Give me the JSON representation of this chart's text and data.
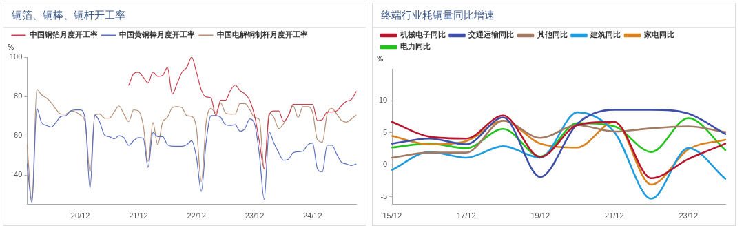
{
  "chart_data": [
    {
      "type": "line",
      "title": "铜箔、铜棒、铜杆开工率",
      "ylabel": "%",
      "legend": "top",
      "grid": false,
      "marker": "none",
      "line_style": "solid",
      "categories": [
        null,
        null,
        null,
        null,
        null,
        null,
        null,
        null,
        null,
        null,
        null,
        "20/12",
        null,
        null,
        null,
        null,
        null,
        null,
        null,
        null,
        null,
        null,
        null,
        "21/12",
        null,
        null,
        null,
        null,
        null,
        null,
        null,
        null,
        null,
        null,
        null,
        "22/12",
        null,
        null,
        null,
        null,
        null,
        null,
        null,
        null,
        null,
        null,
        null,
        "23/12",
        null,
        null,
        null,
        null,
        null,
        null,
        null,
        null,
        null,
        null,
        null,
        "24/12",
        null,
        null,
        null,
        null,
        null,
        null,
        null,
        null,
        null
      ],
      "ylim": [
        25,
        100
      ],
      "yticks": [
        40,
        60,
        80,
        100
      ],
      "series": [
        {
          "name": "中国铜箔月度开工率",
          "color": "#c8404f",
          "values": [
            null,
            null,
            null,
            null,
            null,
            null,
            null,
            null,
            null,
            null,
            null,
            null,
            null,
            null,
            null,
            null,
            null,
            null,
            null,
            null,
            null,
            85.7,
            91.5,
            92.3,
            89.8,
            86.9,
            92.3,
            90.2,
            90.7,
            94.8,
            81.3,
            86.6,
            92.3,
            94.8,
            100,
            92.3,
            83.3,
            79.7,
            79.2,
            70.2,
            78.0,
            78.0,
            83.0,
            85.7,
            83.0,
            81.3,
            78.0,
            70.2,
            57.0,
            43.1,
            70.2,
            72.6,
            72.6,
            67.2,
            70.2,
            75.9,
            75.9,
            75.9,
            75.9,
            75.9,
            67.7,
            68.2,
            72.1,
            72.1,
            72.6,
            75.4,
            77.5,
            78.4,
            82.5
          ]
        },
        {
          "name": "中国黄铜棒月度开工率",
          "color": "#5b6fc2",
          "values": [
            45.6,
            25.6,
            73.8,
            66.6,
            65.2,
            64.4,
            66.9,
            69.8,
            70.2,
            72.6,
            73.1,
            73.1,
            68.5,
            33.3,
            70.5,
            66.9,
            60.3,
            59.5,
            58.4,
            60.0,
            59.0,
            55.1,
            57.4,
            59.0,
            58.7,
            43.9,
            61.6,
            59.5,
            59.5,
            55.4,
            54.6,
            54.6,
            54.6,
            55.4,
            57.4,
            48.9,
            31.6,
            57.0,
            70.2,
            70.2,
            69.3,
            65.6,
            65.2,
            65.6,
            62.3,
            63.6,
            68.5,
            66.1,
            50.5,
            27.5,
            62.0,
            56.2,
            51.3,
            47.5,
            48.0,
            51.3,
            51.8,
            52.1,
            55.4,
            56.2,
            43.1,
            41.5,
            55.1,
            55.1,
            50.5,
            46.4,
            45.6,
            44.8,
            45.6
          ]
        },
        {
          "name": "中国电解铜制杆月度开工率",
          "color": "#b58e74",
          "values": [
            55.4,
            26.7,
            83.6,
            80.8,
            79.2,
            76.7,
            73.4,
            71.0,
            71.0,
            72.6,
            72.1,
            70.5,
            66.9,
            41.5,
            70.5,
            71.0,
            68.9,
            68.9,
            72.1,
            75.1,
            71.0,
            67.2,
            73.1,
            72.6,
            65.2,
            46.9,
            66.6,
            55.4,
            66.9,
            69.3,
            74.3,
            74.8,
            74.3,
            70.2,
            69.8,
            63.6,
            36.6,
            66.9,
            73.8,
            71.8,
            76.7,
            71.5,
            71.0,
            71.0,
            76.4,
            76.4,
            73.4,
            69.3,
            68.2,
            43.1,
            71.5,
            69.3,
            63.6,
            66.1,
            70.5,
            75.1,
            69.3,
            74.8,
            74.8,
            71.8,
            57.9,
            56.7,
            71.0,
            73.8,
            71.0,
            67.7,
            66.9,
            68.5,
            70.5
          ]
        }
      ]
    },
    {
      "type": "line",
      "title": "终端行业耗铜量同比增速",
      "ylabel": "%",
      "legend": "top",
      "grid": false,
      "marker": "none",
      "line_style": "solid",
      "categories": [
        "15/12",
        null,
        "17/12",
        null,
        "19/12",
        null,
        "21/12",
        null,
        "23/12",
        null
      ],
      "ylim": [
        -6.2,
        15
      ],
      "yticks": [
        -5,
        0,
        5,
        10
      ],
      "series": [
        {
          "name": "机械电子同比",
          "color": "#b5162d",
          "values": [
            6.7,
            4.4,
            4.1,
            7.7,
            1.2,
            6.2,
            6.7,
            -2.1,
            0.9,
            3.3
          ]
        },
        {
          "name": "交通运输同比",
          "color": "#3e4fa8",
          "values": [
            3.3,
            4.1,
            3.2,
            7.4,
            -1.9,
            6.4,
            8.6,
            8.6,
            8.0,
            4.8
          ]
        },
        {
          "name": "其他同比",
          "color": "#a37a63",
          "values": [
            1.1,
            1.9,
            1.9,
            6.9,
            4.2,
            6.2,
            5.2,
            5.7,
            6.0,
            5.1
          ]
        },
        {
          "name": "建筑同比",
          "color": "#1f9be0",
          "values": [
            -0.8,
            2.0,
            1.1,
            2.9,
            1.1,
            8.2,
            5.1,
            -5.3,
            2.6,
            -2.2
          ]
        },
        {
          "name": "家电同比",
          "color": "#d9821e",
          "values": [
            4.5,
            3.2,
            3.7,
            6.9,
            3.3,
            2.7,
            6.7,
            -3.1,
            2.4,
            3.9
          ]
        },
        {
          "name": "电力同比",
          "color": "#22c41a",
          "values": [
            2.7,
            3.3,
            2.6,
            5.6,
            1.3,
            6.5,
            6.0,
            2.0,
            7.3,
            2.3
          ]
        }
      ]
    }
  ]
}
